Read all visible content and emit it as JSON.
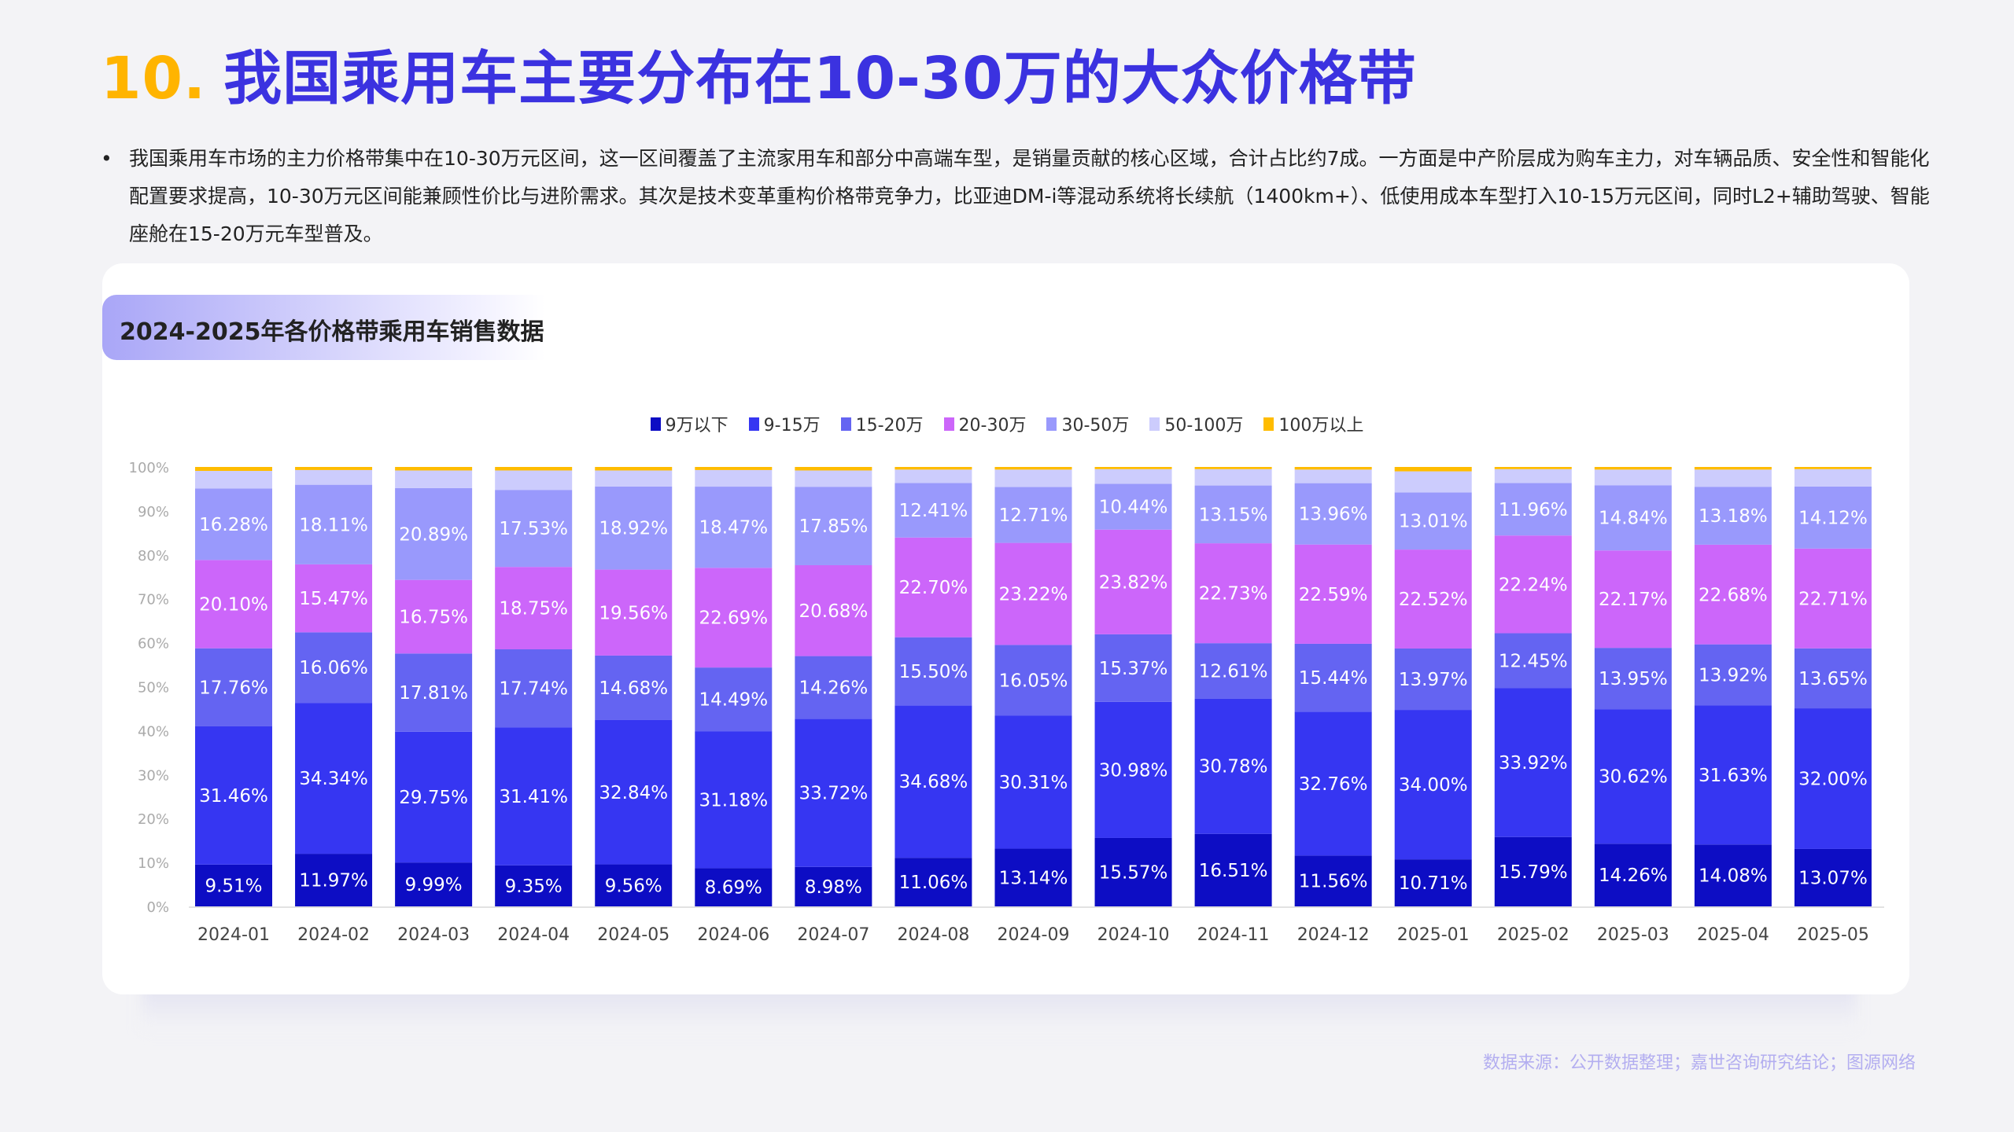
{
  "title": {
    "number": "10.",
    "text": "我国乘用车主要分布在10-30万的大众价格带"
  },
  "bullet": {
    "marker": "•",
    "text": "我国乘用车市场的主力价格带集中在10-30万元区间，这一区间覆盖了主流家用车和部分中高端车型，是销量贡献的核心区域，合计占比约7成。一方面是中产阶层成为购车主力，对车辆品质、安全性和智能化配置要求提高，10-30万元区间能兼顾性价比与进阶需求。其次是技术变革重构价格带竞争力，比亚迪DM-i等混动系统将长续航（1400km+）、低使用成本车型打入10-15万元区间，同时L2+辅助驾驶、智能座舱在15-20万元车型普及。"
  },
  "chart_header": "2024-2025年各价格带乘用车销售数据",
  "source": "数据来源：公开数据整理；嘉世咨询研究结论；图源网络",
  "chart_data": {
    "type": "bar",
    "stacked": true,
    "percent": true,
    "title": "2024-2025年各价格带乘用车销售数据",
    "legend_position": "top",
    "grid": false,
    "ylim": [
      0,
      100
    ],
    "yticks": [
      "0%",
      "10%",
      "20%",
      "30%",
      "40%",
      "50%",
      "60%",
      "70%",
      "80%",
      "90%",
      "100%"
    ],
    "categories": [
      "2024-01",
      "2024-02",
      "2024-03",
      "2024-04",
      "2024-05",
      "2024-06",
      "2024-07",
      "2024-08",
      "2024-09",
      "2024-10",
      "2024-11",
      "2024-12",
      "2025-01",
      "2025-02",
      "2025-03",
      "2025-04",
      "2025-05"
    ],
    "series": [
      {
        "name": "9万以下",
        "color": "#0d0dc4",
        "labeled": true,
        "values": [
          9.51,
          11.97,
          9.99,
          9.35,
          9.56,
          8.69,
          8.98,
          11.06,
          13.14,
          15.57,
          16.51,
          11.56,
          10.71,
          15.79,
          14.26,
          14.08,
          13.07
        ]
      },
      {
        "name": "9-15万",
        "color": "#3636f2",
        "labeled": true,
        "values": [
          31.46,
          34.34,
          29.75,
          31.41,
          32.84,
          31.18,
          33.72,
          34.68,
          30.31,
          30.98,
          30.78,
          32.76,
          34.0,
          33.92,
          30.62,
          31.63,
          32.0
        ]
      },
      {
        "name": "15-20万",
        "color": "#6464f2",
        "labeled": true,
        "values": [
          17.76,
          16.06,
          17.81,
          17.74,
          14.68,
          14.49,
          14.26,
          15.5,
          16.05,
          15.37,
          12.61,
          15.44,
          13.97,
          12.45,
          13.95,
          13.92,
          13.65
        ]
      },
      {
        "name": "20-30万",
        "color": "#cc66fa",
        "labeled": true,
        "values": [
          20.1,
          15.47,
          16.75,
          18.75,
          19.56,
          22.69,
          20.68,
          22.7,
          23.22,
          23.82,
          22.73,
          22.59,
          22.52,
          22.24,
          22.17,
          22.68,
          22.71
        ]
      },
      {
        "name": "30-50万",
        "color": "#9999fc",
        "labeled": true,
        "values": [
          16.28,
          18.11,
          20.89,
          17.53,
          18.92,
          18.47,
          17.85,
          12.41,
          12.71,
          10.44,
          13.15,
          13.96,
          13.01,
          11.96,
          14.84,
          13.18,
          14.12
        ]
      },
      {
        "name": "50-100万",
        "color": "#ccccfd",
        "labeled": false,
        "values": [
          3.99,
          3.35,
          4.01,
          4.42,
          3.64,
          3.78,
          3.71,
          3.05,
          3.97,
          3.32,
          3.72,
          3.09,
          4.79,
          3.14,
          3.56,
          3.91,
          3.95
        ]
      },
      {
        "name": "100万以上",
        "color": "#ffbc00",
        "labeled": false,
        "values": [
          0.9,
          0.7,
          0.8,
          0.8,
          0.8,
          0.7,
          0.8,
          0.6,
          0.6,
          0.5,
          0.5,
          0.6,
          1.0,
          0.5,
          0.6,
          0.6,
          0.5
        ]
      }
    ]
  }
}
